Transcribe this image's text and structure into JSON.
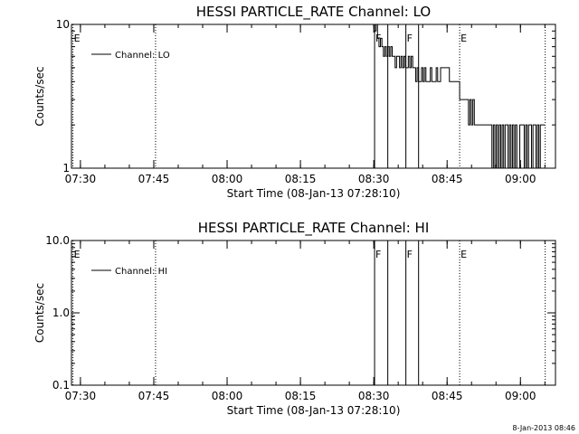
{
  "footer_timestamp": "8-Jan-2013 08:46",
  "chart_data": [
    {
      "type": "line",
      "title": "HESSI PARTICLE_RATE Channel: LO",
      "xlabel": "Start Time (08-Jan-13 07:28:10)",
      "ylabel": "Counts/sec",
      "x_unit": "minutes after 07:28:10",
      "xlim": [
        0,
        99
      ],
      "ylim": [
        1,
        10
      ],
      "y_scale": "log",
      "xtick_labels": [
        "07:30",
        "07:45",
        "08:00",
        "08:15",
        "08:30",
        "08:45",
        "09:00"
      ],
      "ytick_labels": [
        "1",
        "10"
      ],
      "legend": {
        "placement": "top-left",
        "entries": [
          "Channel: LO"
        ]
      },
      "markers": [
        {
          "label": "E",
          "x": 0.3,
          "style": "dotted"
        },
        {
          "label": "",
          "x": 17.2,
          "style": "dotted"
        },
        {
          "label": "F",
          "x": 62.0,
          "style": "solid"
        },
        {
          "label": "",
          "x": 64.7,
          "style": "solid"
        },
        {
          "label": "F",
          "x": 68.4,
          "style": "solid"
        },
        {
          "label": "",
          "x": 71.0,
          "style": "solid"
        },
        {
          "label": "E",
          "x": 79.4,
          "style": "dotted"
        },
        {
          "label": "",
          "x": 96.9,
          "style": "dotted"
        }
      ],
      "series": [
        {
          "name": "Channel: LO",
          "x": [
            62.0,
            62.3,
            62.6,
            62.9,
            63.2,
            63.5,
            63.8,
            64.1,
            64.4,
            64.7,
            65.0,
            65.3,
            65.6,
            65.9,
            66.2,
            66.5,
            66.8,
            67.1,
            67.4,
            67.7,
            68.0,
            68.3,
            68.6,
            68.9,
            69.2,
            69.5,
            69.8,
            70.1,
            70.4,
            70.7,
            71.0,
            71.3,
            71.6,
            71.9,
            72.2,
            72.5,
            72.8,
            73.1,
            73.4,
            73.7,
            74.0,
            74.3,
            74.6,
            74.9,
            75.2,
            75.5,
            75.8,
            76.1,
            76.4,
            76.7,
            77.0,
            77.3,
            77.6,
            77.9,
            78.2,
            78.5,
            78.8,
            79.1,
            79.4,
            79.7,
            80.0,
            80.3,
            80.6,
            80.9,
            81.2,
            81.5,
            81.8,
            82.1,
            82.4,
            82.7,
            83.0,
            83.3,
            83.6,
            83.9,
            84.2,
            84.5,
            84.8,
            85.1,
            85.4,
            85.7,
            86.0,
            86.3,
            86.6,
            86.9,
            87.2,
            87.5,
            87.8,
            88.1,
            88.4,
            88.7,
            89.0,
            89.3,
            89.6,
            89.9,
            90.2,
            90.5,
            90.8,
            91.1,
            91.4,
            91.7,
            92.0,
            92.3,
            92.6,
            92.9,
            93.2,
            93.5,
            93.8,
            94.1,
            94.4,
            94.7,
            95.0,
            95.3,
            95.6,
            95.9,
            96.2,
            96.5
          ],
          "values": [
            9,
            10,
            8,
            7,
            8,
            7,
            6,
            7,
            6,
            7,
            6,
            7,
            6,
            6,
            5,
            6,
            6,
            5,
            6,
            5,
            6,
            5,
            5,
            6,
            5,
            6,
            5,
            5,
            4,
            5,
            4,
            4,
            5,
            4,
            5,
            4,
            4,
            4,
            5,
            4,
            4,
            4,
            5,
            4,
            4,
            5,
            5,
            5,
            5,
            5,
            5,
            4,
            4,
            4,
            4,
            4,
            4,
            4,
            3,
            3,
            3,
            3,
            3,
            3,
            2,
            3,
            2,
            3,
            2,
            2,
            2,
            2,
            2,
            2,
            2,
            2,
            2,
            2,
            2,
            2,
            1,
            2,
            1,
            2,
            1,
            2,
            1,
            2,
            1,
            2,
            2,
            1,
            2,
            1,
            2,
            1,
            2,
            1,
            1,
            2,
            2,
            2,
            1,
            2,
            1,
            2,
            2,
            1,
            2,
            2,
            1,
            2,
            1,
            2,
            2,
            2
          ]
        }
      ]
    },
    {
      "type": "line",
      "title": "HESSI PARTICLE_RATE Channel: HI",
      "xlabel": "Start Time (08-Jan-13 07:28:10)",
      "ylabel": "Counts/sec",
      "x_unit": "minutes after 07:28:10",
      "xlim": [
        0,
        99
      ],
      "ylim": [
        0.1,
        10
      ],
      "y_scale": "log",
      "xtick_labels": [
        "07:30",
        "07:45",
        "08:00",
        "08:15",
        "08:30",
        "08:45",
        "09:00"
      ],
      "ytick_labels": [
        "0.1",
        "1.0",
        "10.0"
      ],
      "legend": {
        "placement": "top-left",
        "entries": [
          "Channel: HI"
        ]
      },
      "markers": [
        {
          "label": "E",
          "x": 0.3,
          "style": "dotted"
        },
        {
          "label": "",
          "x": 17.2,
          "style": "dotted"
        },
        {
          "label": "F",
          "x": 62.0,
          "style": "solid"
        },
        {
          "label": "",
          "x": 64.7,
          "style": "solid"
        },
        {
          "label": "F",
          "x": 68.4,
          "style": "solid"
        },
        {
          "label": "",
          "x": 71.0,
          "style": "solid"
        },
        {
          "label": "E",
          "x": 79.4,
          "style": "dotted"
        },
        {
          "label": "",
          "x": 96.9,
          "style": "dotted"
        }
      ],
      "series": [
        {
          "name": "Channel: HI",
          "x": [],
          "values": []
        }
      ]
    }
  ]
}
